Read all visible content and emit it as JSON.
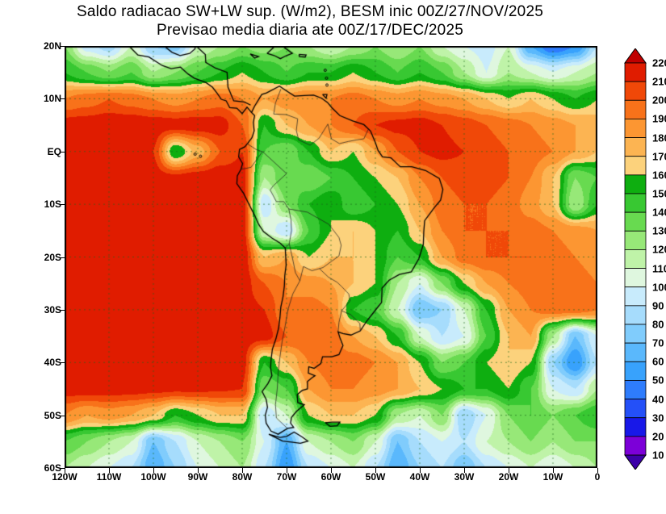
{
  "title": {
    "line1": "Saldo radiacao SW+LW sup. (W/m2), BESM inic 00Z/27/NOV/2025",
    "line2": "Previsao media diaria ate 00Z/17/DEC/2025"
  },
  "chart_data": {
    "type": "heatmap",
    "title": "Saldo radiacao SW+LW sup. (W/m2), BESM inic 00Z/27/NOV/2025",
    "subtitle": "Previsao media diaria ate 00Z/17/DEC/2025",
    "units": "W/m2",
    "lon_range": [
      -120,
      0
    ],
    "lat_range": [
      -60,
      20
    ],
    "lon_ticks": [
      {
        "value": -120,
        "label": "120W"
      },
      {
        "value": -110,
        "label": "110W"
      },
      {
        "value": -100,
        "label": "100W"
      },
      {
        "value": -90,
        "label": "90W"
      },
      {
        "value": -80,
        "label": "80W"
      },
      {
        "value": -70,
        "label": "70W"
      },
      {
        "value": -60,
        "label": "60W"
      },
      {
        "value": -50,
        "label": "50W"
      },
      {
        "value": -40,
        "label": "40W"
      },
      {
        "value": -30,
        "label": "30W"
      },
      {
        "value": -20,
        "label": "20W"
      },
      {
        "value": -10,
        "label": "10W"
      },
      {
        "value": 0,
        "label": "0"
      }
    ],
    "lat_ticks": [
      {
        "value": 20,
        "label": "20N"
      },
      {
        "value": 10,
        "label": "10N"
      },
      {
        "value": 0,
        "label": "EQ"
      },
      {
        "value": -10,
        "label": "10S"
      },
      {
        "value": -20,
        "label": "20S"
      },
      {
        "value": -30,
        "label": "30S"
      },
      {
        "value": -40,
        "label": "40S"
      },
      {
        "value": -50,
        "label": "50S"
      },
      {
        "value": -60,
        "label": "60S"
      }
    ],
    "levels": [
      10,
      20,
      30,
      40,
      50,
      60,
      70,
      80,
      90,
      100,
      110,
      120,
      130,
      140,
      150,
      160,
      170,
      180,
      190,
      200,
      210,
      220
    ],
    "palette": [
      "#3c00a8",
      "#7c00d8",
      "#1818e8",
      "#2450f8",
      "#2e7cfc",
      "#38a2fc",
      "#5ab8fc",
      "#80ccfc",
      "#a6dcfc",
      "#c8ebfc",
      "#dff7df",
      "#bff3a8",
      "#97e878",
      "#68da50",
      "#38c832",
      "#0eae10",
      "#fcd27c",
      "#fcb452",
      "#fc9632",
      "#f8721a",
      "#f04808",
      "#e01c00",
      "#c00000"
    ],
    "grid": {
      "lons": [
        -120,
        -115,
        -110,
        -105,
        -100,
        -95,
        -90,
        -85,
        -80,
        -75,
        -70,
        -65,
        -60,
        -55,
        -50,
        -45,
        -40,
        -35,
        -30,
        -25,
        -20,
        -15,
        -10,
        -5,
        0
      ],
      "lats": [
        20,
        15,
        10,
        5,
        0,
        -5,
        -10,
        -15,
        -20,
        -25,
        -30,
        -35,
        -40,
        -45,
        -50,
        -55,
        -60
      ],
      "values": [
        [
          130,
          95,
          85,
          110,
          80,
          75,
          110,
          120,
          130,
          125,
          130,
          120,
          110,
          120,
          130,
          120,
          130,
          110,
          100,
          95,
          110,
          60,
          40,
          50,
          90
        ],
        [
          150,
          140,
          130,
          140,
          120,
          130,
          140,
          150,
          160,
          150,
          140,
          150,
          150,
          160,
          150,
          140,
          150,
          140,
          120,
          100,
          120,
          110,
          100,
          110,
          120
        ],
        [
          190,
          195,
          200,
          195,
          190,
          185,
          190,
          195,
          190,
          180,
          185,
          190,
          190,
          195,
          190,
          185,
          190,
          185,
          180,
          170,
          160,
          170,
          160,
          150,
          160
        ],
        [
          215,
          216,
          218,
          218,
          216,
          215,
          216,
          215,
          200,
          150,
          170,
          180,
          190,
          200,
          210,
          213,
          215,
          210,
          205,
          200,
          195,
          190,
          185,
          180,
          175
        ],
        [
          218,
          218,
          218,
          215,
          210,
          150,
          175,
          200,
          210,
          140,
          130,
          150,
          170,
          160,
          180,
          200,
          210,
          213,
          210,
          205,
          200,
          195,
          190,
          180,
          170
        ],
        [
          218,
          218,
          218,
          218,
          215,
          213,
          216,
          218,
          216,
          120,
          140,
          130,
          140,
          150,
          160,
          170,
          190,
          200,
          205,
          205,
          200,
          190,
          170,
          130,
          140
        ],
        [
          218,
          218,
          218,
          218,
          216,
          216,
          218,
          218,
          218,
          90,
          130,
          150,
          160,
          140,
          150,
          160,
          180,
          195,
          200,
          200,
          195,
          185,
          170,
          120,
          150
        ],
        [
          218,
          218,
          218,
          218,
          217,
          217,
          218,
          218,
          217,
          110,
          90,
          140,
          160,
          170,
          160,
          150,
          170,
          190,
          200,
          200,
          200,
          195,
          190,
          185,
          180
        ],
        [
          218,
          218,
          218,
          218,
          218,
          217,
          218,
          218,
          218,
          170,
          180,
          160,
          170,
          170,
          160,
          140,
          150,
          180,
          195,
          200,
          200,
          200,
          195,
          190,
          185
        ],
        [
          218,
          218,
          218,
          218,
          218,
          218,
          217,
          218,
          216,
          200,
          190,
          185,
          180,
          170,
          160,
          120,
          100,
          130,
          160,
          180,
          190,
          195,
          195,
          195,
          190
        ],
        [
          218,
          218,
          218,
          218,
          218,
          218,
          218,
          217,
          216,
          210,
          190,
          195,
          190,
          150,
          140,
          110,
          70,
          80,
          110,
          150,
          180,
          190,
          195,
          195,
          190
        ],
        [
          218,
          218,
          218,
          218,
          218,
          218,
          218,
          217,
          216,
          215,
          200,
          200,
          195,
          180,
          170,
          150,
          110,
          90,
          100,
          140,
          170,
          180,
          120,
          70,
          100
        ],
        [
          217,
          217,
          217,
          217,
          217,
          217,
          217,
          216,
          215,
          150,
          170,
          190,
          195,
          195,
          190,
          180,
          160,
          130,
          140,
          160,
          170,
          160,
          80,
          50,
          90
        ],
        [
          215,
          215,
          215,
          214,
          213,
          212,
          212,
          211,
          210,
          130,
          140,
          180,
          190,
          190,
          185,
          180,
          170,
          160,
          150,
          150,
          160,
          140,
          100,
          90,
          120
        ],
        [
          190,
          180,
          185,
          180,
          170,
          150,
          160,
          170,
          170,
          90,
          110,
          160,
          170,
          170,
          160,
          120,
          110,
          130,
          80,
          100,
          130,
          140,
          130,
          140,
          150
        ],
        [
          140,
          130,
          120,
          110,
          70,
          90,
          110,
          120,
          130,
          100,
          60,
          110,
          120,
          130,
          110,
          70,
          90,
          100,
          90,
          110,
          120,
          130,
          120,
          130,
          130
        ],
        [
          120,
          110,
          100,
          90,
          60,
          80,
          100,
          110,
          120,
          90,
          50,
          90,
          100,
          110,
          90,
          60,
          80,
          90,
          70,
          90,
          100,
          110,
          100,
          110,
          120
        ]
      ]
    }
  }
}
